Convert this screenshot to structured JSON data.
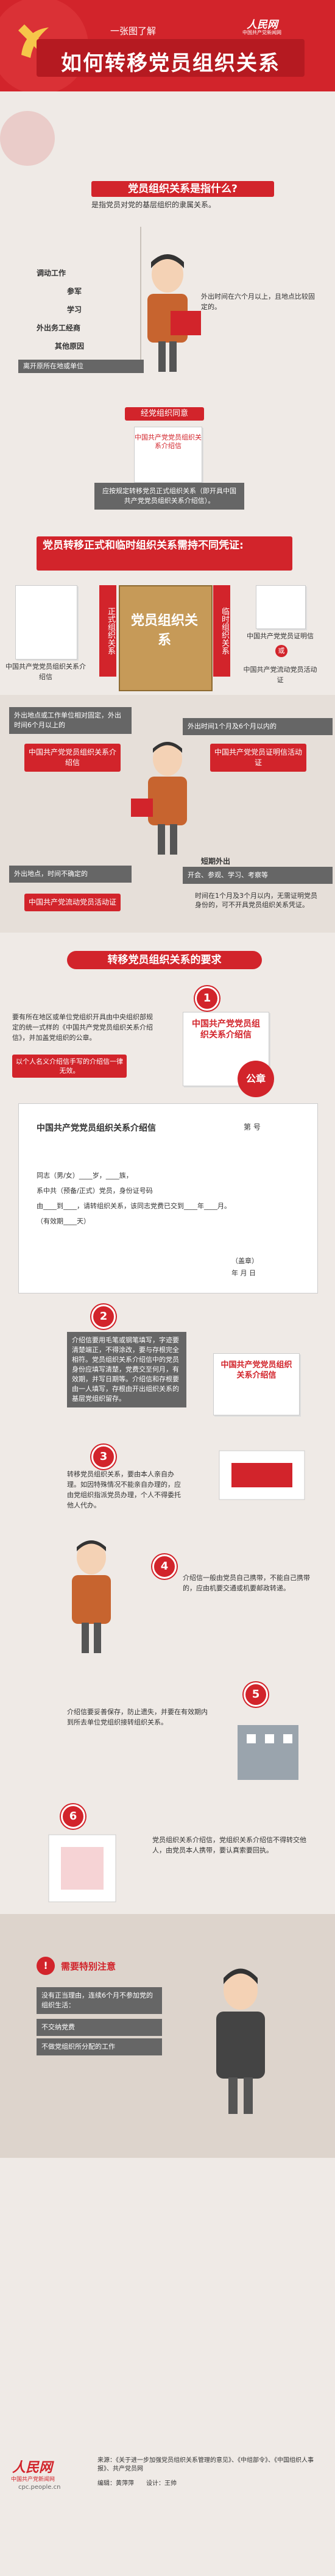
{
  "header": {
    "subtitle": "一张图了解",
    "title": "如何转移党员组织关系",
    "logo": "人民网",
    "logo_sub": "中国共产党新闻网"
  },
  "section1": {
    "question": "党员组织关系是指什么?",
    "answer": "是指党员对党的基层组织的隶属关系。",
    "reasons": [
      "调动工作",
      "参军",
      "学习",
      "外出务工经商",
      "其他原因"
    ],
    "left_note": "离开原所在地或单位",
    "right_note": "外出时间在六个月以上，且地点比较固定的。",
    "stamp_label": "经党组织同意",
    "doc_label": "中国共产党党员组织关系介绍信",
    "conclusion": "应按规定转移党员正式组织关系（即开具中国共产党党员组织关系介绍信）。"
  },
  "section2": {
    "title": "党员转移正式和临时组织关系需持不同凭证:",
    "left_label": "正式组织关系",
    "center_label": "党员组织关系",
    "right_label": "临时组织关系",
    "left_doc": "中国共产党党员组织关系介绍信",
    "right_doc_a": "中国共产党党员证明信",
    "or_text": "或",
    "right_doc_b": "中国共产党流动党员活动证",
    "box1": "外出地点或工作单位相对固定，外出时间6个月以上的",
    "box2": "外出时间1个月及6个月以内的",
    "card1": "中国共产党党员组织关系介绍信",
    "card2": "中国共产党党员证明信活动证",
    "box3": "外出地点，时间不确定的",
    "box4_title": "短期外出",
    "box4": "开会、参观、学习、考察等",
    "card3": "中国共产党流动党员活动证",
    "note": "时间在1个月及3个月以内，无需证明党员身份的，可不开具党员组织关系凭证。"
  },
  "section3": {
    "title": "转移党员组织关系的要求",
    "step1_text": "要有所在地区或单位党组织开具由中央组织部规定的统一式样的《中国共产党党员组织关系介绍信》，并加盖党组织的公章。",
    "step1_note": "以个人名义介绍信手写的介绍信一律无效。",
    "step1_doc": "中国共产党党员组织关系介绍信",
    "seal": "公章",
    "form_title": "中国共产党党员组织关系介绍信",
    "form_no": "第 号",
    "form_line1": "同志（男/女）____岁，____族，",
    "form_line2": "系中共（预备/正式）党员，身份证号码",
    "form_line3": "由____到____，请转组织关系，该同志党费已交到____年____月。",
    "form_line4": "（有效期____天）",
    "form_sign": "（盖章）",
    "form_date": "年 月 日",
    "step2_text": "介绍信要用毛笔或钢笔填写，字迹要清楚端正，不得涂改，要与存根完全相符。党员组织关系介绍信中的党员身份应填写清楚，党费交至何月，有效期，并写日期等。介绍信和存根要由一人填写，存根由开出组织关系的基层党组织留存。",
    "step2_doc": "中国共产党党员组织关系介绍信",
    "step3_text": "转移党员组织关系，要由本人亲自办理。如因特殊情况不能亲自办理的，应由党组织指派党员办理，个人不得委托他人代办。",
    "step4_text": "介绍信一般由党员自己携带，不能自己携带的，应由机要交通或机要邮政转递。",
    "step5_text": "介绍信要妥善保存，防止遗失，并要在有效期内到所去单位党组织接转组织关系。",
    "step6_text": "党员组织关系介绍信，党组织关系介绍信不得转交他人，由党员本人携带，要认真索要回执。"
  },
  "section4": {
    "title": "需要特别注意",
    "items": [
      "没有正当理由，连续6个月不参加党的组织生活：",
      "不交纳党费",
      "不做党组织所分配的工作"
    ]
  },
  "footer": {
    "source": "来源：《关于进一步加强党员组织关系管理的意见》、《中组部令》、《中国组织人事报》、共产党员网",
    "editor": "编辑：黄萍萍　　设计：王帅",
    "logo": "人民网",
    "logo_sub": "中国共产党新闻网",
    "url": "cpc.people.cn"
  }
}
